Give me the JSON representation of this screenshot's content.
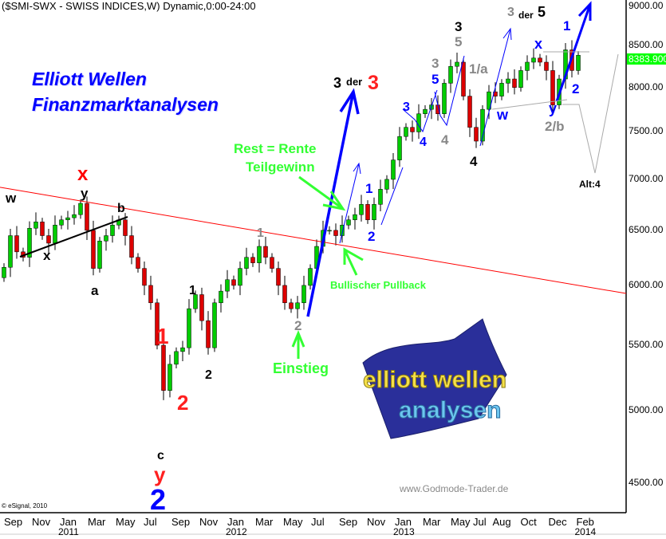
{
  "header": {
    "title": "($SMI-SWX - SWISS INDICES,W) Dynamic,0:00-24:00",
    "heading_line1": "Elliott Wellen",
    "heading_line2": "Finanzmarktanalysen"
  },
  "footer": {
    "copyright": "© eSignal, 2010",
    "url": "www.Godmode-Trader.de"
  },
  "logo": {
    "line1": "elliott wellen",
    "line2": "analysen"
  },
  "annotations": {
    "w1": "w",
    "x1": "x",
    "y1": "y",
    "x_red": "x",
    "b": "b",
    "a": "a",
    "red1": "1",
    "red2": "2",
    "black1": "1",
    "black2": "2",
    "c": "c",
    "y_red": "y",
    "blue2_big": "2",
    "gray1": "1",
    "gray2": "2",
    "einstieg": "Einstieg",
    "bullish": "Bullischer Pullback",
    "rest": "Rest = Rente",
    "teil": "Teilgewinn",
    "t33_a": "3",
    "t33_der": "der",
    "t33_b": "3",
    "blue1": "1",
    "blue2": "2",
    "blue3": "3",
    "blue4": "4",
    "blue5": "5",
    "gray3": "3",
    "gray4": "4",
    "black3": "3",
    "gray5": "5",
    "gray1a": "1/a",
    "black4": "4",
    "w_blue": "w",
    "x_blue": "x",
    "y_blue": "y",
    "gray2b": "2/b",
    "blue1b": "1",
    "blue2b": "2",
    "t35_a": "3",
    "t35_der": "der",
    "t35_b": "5",
    "alt4": "Alt:4"
  },
  "chart_data": {
    "type": "candlestick",
    "title": "($SMI-SWX - SWISS INDICES,W) Dynamic,0:00-24:00",
    "y_scale": "log",
    "ylim": [
      4400,
      9100
    ],
    "y_ticks": [
      "9000.00",
      "8500.00",
      "8000.00",
      "7500.00",
      "7000.00",
      "6500.00",
      "6000.00",
      "5500.00",
      "5000.00",
      "4500.00"
    ],
    "last_price": "8383.900",
    "x_ticks": [
      {
        "label": "Sep",
        "year": ""
      },
      {
        "label": "Nov",
        "year": ""
      },
      {
        "label": "Jan",
        "year": "2011"
      },
      {
        "label": "Mar",
        "year": ""
      },
      {
        "label": "May",
        "year": ""
      },
      {
        "label": "Jul",
        "year": ""
      },
      {
        "label": "Sep",
        "year": ""
      },
      {
        "label": "Nov",
        "year": ""
      },
      {
        "label": "Jan",
        "year": "2012"
      },
      {
        "label": "Mar",
        "year": ""
      },
      {
        "label": "May",
        "year": ""
      },
      {
        "label": "Jul",
        "year": ""
      },
      {
        "label": "Sep",
        "year": ""
      },
      {
        "label": "Nov",
        "year": ""
      },
      {
        "label": "Jan",
        "year": "2013"
      },
      {
        "label": "Mar",
        "year": ""
      },
      {
        "label": "May",
        "year": ""
      },
      {
        "label": "Jul",
        "year": ""
      },
      {
        "label": "Aug",
        "year": ""
      },
      {
        "label": "Oct",
        "year": ""
      },
      {
        "label": "Dec",
        "year": ""
      },
      {
        "label": "Feb",
        "year": "2014"
      }
    ],
    "x_tick_months_from_sep_2010": [
      0,
      2,
      4,
      6,
      8,
      10,
      12,
      14,
      16,
      18,
      20,
      22,
      24,
      26,
      28,
      30,
      32,
      33.6,
      35,
      37,
      39,
      41
    ],
    "closes": [
      6160,
      6450,
      6300,
      6250,
      6520,
      6580,
      6450,
      6380,
      6550,
      6600,
      6620,
      6650,
      6760,
      6500,
      6150,
      6400,
      6450,
      6550,
      6600,
      6450,
      6250,
      6150,
      6000,
      5850,
      5500,
      5150,
      5350,
      5450,
      5480,
      5800,
      5920,
      5700,
      5480,
      5850,
      5950,
      6050,
      6000,
      6150,
      6250,
      6200,
      6350,
      6250,
      6150,
      6000,
      5850,
      5800,
      5850,
      6000,
      6150,
      6350,
      6500,
      6500,
      6450,
      6550,
      6600,
      6650,
      6750,
      6600,
      6750,
      6900,
      7000,
      7200,
      7450,
      7550,
      7500,
      7700,
      7750,
      7800,
      7700,
      8050,
      8250,
      8300,
      7900,
      7550,
      7400,
      7750,
      7950,
      7900,
      8050,
      8100,
      8000,
      8200,
      8300,
      8350,
      8300,
      8200,
      7800,
      8100,
      8450,
      8200,
      8383.9
    ],
    "trendline_red": [
      6920,
      5930
    ],
    "colors": {
      "up": "#00cc00",
      "down": "#dd0000",
      "trend": "#ff0000",
      "wave_blue": "#0000ff",
      "badge": "#00ff00",
      "highlight": "#00ff00"
    }
  }
}
